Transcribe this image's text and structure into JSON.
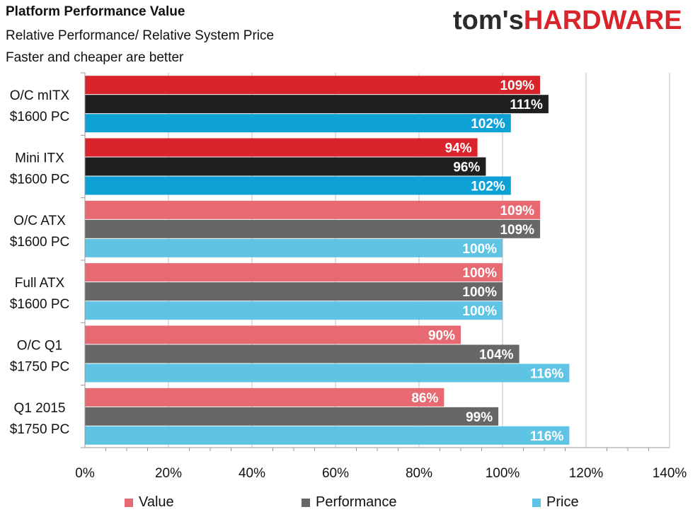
{
  "header": {
    "title": "Platform Performance Value",
    "subtitle1": "Relative Performance/ Relative System Price",
    "subtitle2": "Faster and cheaper are better",
    "logo_part1": "tom's",
    "logo_part2": "HARDWARE"
  },
  "colors": {
    "value_dark": "#d9242b",
    "performance_dark": "#1f1f1f",
    "price_dark": "#0ea1d6",
    "value_light": "#e76a72",
    "performance_light": "#676767",
    "price_light": "#5fc3e4",
    "grid": "#bfbfbf",
    "logo_dark": "#2b2b2b",
    "logo_red": "#d9242b"
  },
  "chart_data": {
    "type": "bar",
    "orientation": "horizontal",
    "categories": [
      {
        "line1": "O/C mITX",
        "line2": "$1600 PC"
      },
      {
        "line1": "Mini ITX",
        "line2": "$1600 PC"
      },
      {
        "line1": "O/C ATX",
        "line2": "$1600 PC"
      },
      {
        "line1": "Full ATX",
        "line2": "$1600 PC"
      },
      {
        "line1": "O/C Q1",
        "line2": "$1750 PC"
      },
      {
        "line1": "Q1 2015",
        "line2": "$1750 PC"
      }
    ],
    "series": [
      {
        "name": "Value",
        "values": [
          109,
          94,
          109,
          100,
          90,
          86
        ]
      },
      {
        "name": "Performance",
        "values": [
          111,
          96,
          109,
          100,
          104,
          99
        ]
      },
      {
        "name": "Price",
        "values": [
          102,
          102,
          100,
          100,
          116,
          116
        ]
      }
    ],
    "highlighted_categories": [
      0,
      1
    ],
    "xlim": [
      0,
      140
    ],
    "xticks": [
      "0%",
      "20%",
      "40%",
      "60%",
      "80%",
      "100%",
      "120%",
      "140%"
    ],
    "value_suffix": "%",
    "grid": true,
    "legend_position": "bottom"
  }
}
